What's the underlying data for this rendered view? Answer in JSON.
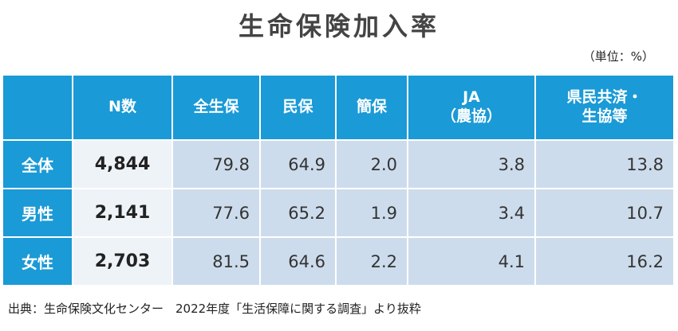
{
  "chart_data": {
    "type": "table",
    "title": "生命保険加入率",
    "unit_note": "（単位：%）",
    "columns": [
      "N数",
      "全生保",
      "民保",
      "簡保",
      "JA（農協）",
      "県民共済・生協等"
    ],
    "column_header_lines": [
      [
        "N数"
      ],
      [
        "全生保"
      ],
      [
        "民保"
      ],
      [
        "簡保"
      ],
      [
        "JA",
        "（農協）"
      ],
      [
        "県民共済・",
        "生協等"
      ]
    ],
    "rows": [
      {
        "label": "全体",
        "n": "4,844",
        "values": [
          "79.8",
          "64.9",
          "2.0",
          "3.8",
          "13.8"
        ]
      },
      {
        "label": "男性",
        "n": "2,141",
        "values": [
          "77.6",
          "65.2",
          "1.9",
          "3.4",
          "10.7"
        ]
      },
      {
        "label": "女性",
        "n": "2,703",
        "values": [
          "81.5",
          "64.6",
          "2.2",
          "4.1",
          "16.2"
        ]
      }
    ],
    "source": "出典：生命保険文化センター　2022年度「生活保障に関する調査」より抜粋",
    "colors": {
      "header": "#1a9ad6",
      "value_cell": "#cddcec",
      "n_cell": "#eef3f8"
    }
  }
}
